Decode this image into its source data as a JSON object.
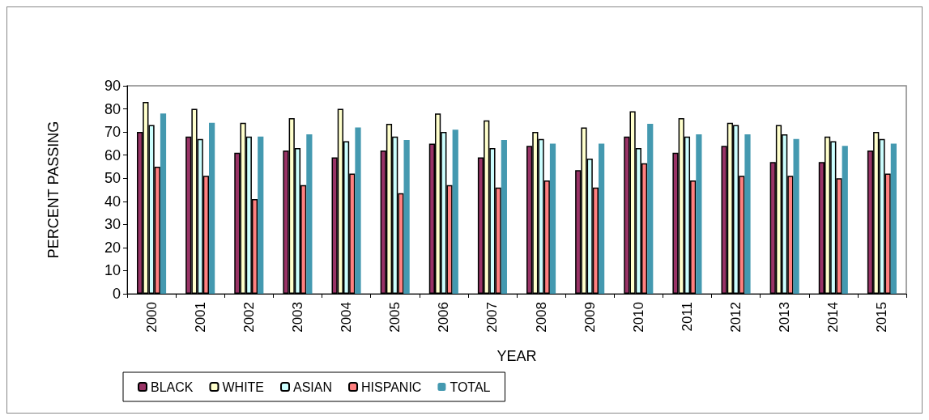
{
  "chart_data": {
    "type": "bar",
    "xlabel": "YEAR",
    "ylabel": "PERCENT PASSING",
    "categories": [
      "2000",
      "2001",
      "2002",
      "2003",
      "2004",
      "2005",
      "2006",
      "2007",
      "2008",
      "2009",
      "2010",
      "2011",
      "2012",
      "2013",
      "2014",
      "2015"
    ],
    "series": [
      {
        "name": "BLACK",
        "color": "#993366",
        "values": [
          70,
          68,
          61,
          62,
          59,
          62,
          65,
          59,
          64,
          53.5,
          68,
          61,
          64,
          57,
          57,
          62
        ]
      },
      {
        "name": "WHITE",
        "color": "#ffffcc",
        "values": [
          83,
          80,
          74,
          76,
          80,
          73.5,
          78,
          75,
          70,
          72,
          79,
          76,
          74,
          73,
          68,
          70
        ]
      },
      {
        "name": "ASIAN",
        "color": "#ccffff",
        "values": [
          73,
          67,
          68,
          63,
          66,
          68,
          70,
          63,
          67,
          58.5,
          63,
          68,
          73,
          69,
          66,
          67
        ]
      },
      {
        "name": "HISPANIC",
        "color": "#ff8080",
        "values": [
          55,
          51,
          41,
          47,
          52,
          43.5,
          47,
          46,
          49,
          46,
          56.5,
          49,
          51,
          51,
          50,
          52
        ]
      },
      {
        "name": "TOTAL",
        "color": "#4499b0",
        "values": [
          78,
          74,
          68,
          69,
          72,
          66.5,
          71,
          66.5,
          65,
          65,
          73.5,
          69,
          69,
          67,
          64,
          65
        ]
      }
    ],
    "ylim": [
      0,
      90
    ],
    "yticks": [
      0,
      10,
      20,
      30,
      40,
      50,
      60,
      70,
      80,
      90
    ],
    "grid": false,
    "legend": "bottom"
  }
}
